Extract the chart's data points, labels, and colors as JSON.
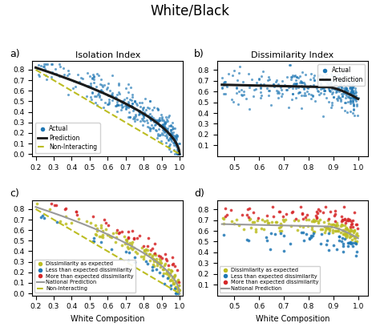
{
  "title": "White/Black",
  "panel_a_title": "Isolation Index",
  "panel_b_title": "Dissimilarity Index",
  "xlabel": "White Composition",
  "panel_a_xlim": [
    0.18,
    1.02
  ],
  "panel_a_ylim": [
    -0.02,
    0.88
  ],
  "panel_b_xlim": [
    0.43,
    1.04
  ],
  "panel_b_ylim": [
    0.0,
    0.88
  ],
  "panel_c_xlim": [
    0.18,
    1.02
  ],
  "panel_c_ylim": [
    -0.02,
    0.88
  ],
  "panel_d_xlim": [
    0.43,
    1.04
  ],
  "panel_d_ylim": [
    0.0,
    0.88
  ],
  "dot_color": "#1f77b4",
  "predict_color": "#1a1a1a",
  "noninteract_color": "#bcbd22",
  "color_as_expected": "#bcbd22",
  "color_less_dissim": "#1f77b4",
  "color_more_dissim": "#d62728",
  "color_national": "#999999",
  "color_noninteract": "#bcbd22",
  "seed": 42
}
